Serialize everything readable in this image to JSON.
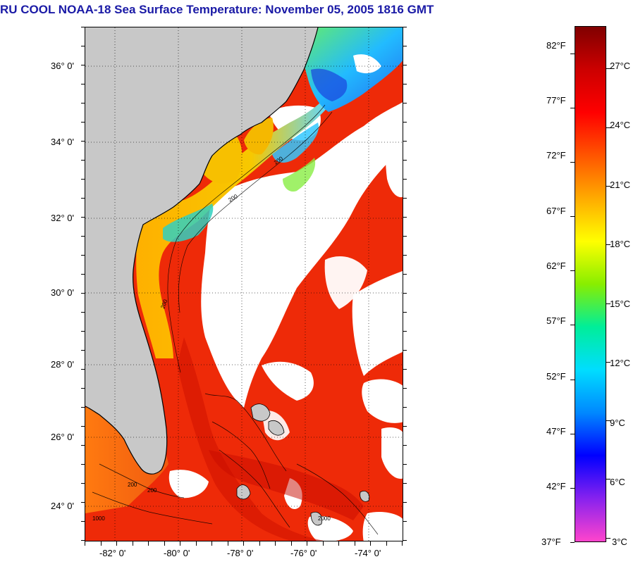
{
  "title": "RU COOL  NOAA-18  Sea Surface Temperature:  November 05, 2005 1816 GMT",
  "map": {
    "lat_labels": [
      "36° 0'",
      "34° 0'",
      "32° 0'",
      "30° 0'",
      "28° 0'",
      "26° 0'",
      "24° 0'"
    ],
    "lon_labels": [
      "-82° 0'",
      "-80° 0'",
      "-78° 0'",
      "-76° 0'",
      "-74° 0'"
    ],
    "contour_labels": [
      "200",
      "200",
      "200",
      "200",
      "1000",
      "2000",
      "200"
    ],
    "colors": {
      "land": "#c8c8c8",
      "cloud": "#ffffff",
      "warm": "#ee2200",
      "coastal": "#f5a300",
      "cold": "#22aaff"
    }
  },
  "colorbar": {
    "fahrenheit": [
      "82°F",
      "77°F",
      "72°F",
      "67°F",
      "62°F",
      "57°F",
      "52°F",
      "47°F",
      "42°F",
      "37°F"
    ],
    "celsius": [
      "27°C",
      "24°C",
      "21°C",
      "18°C",
      "15°C",
      "12°C",
      "9°C",
      "6°C",
      "3°C"
    ],
    "f_range": [
      37,
      84.5
    ],
    "colors": [
      "#ff44cc",
      "#8822ee",
      "#0000ff",
      "#0088ff",
      "#00ddff",
      "#00ee99",
      "#88ee00",
      "#ffff00",
      "#ffaa00",
      "#ff5500",
      "#ff0000",
      "#cc0000",
      "#800000"
    ]
  }
}
